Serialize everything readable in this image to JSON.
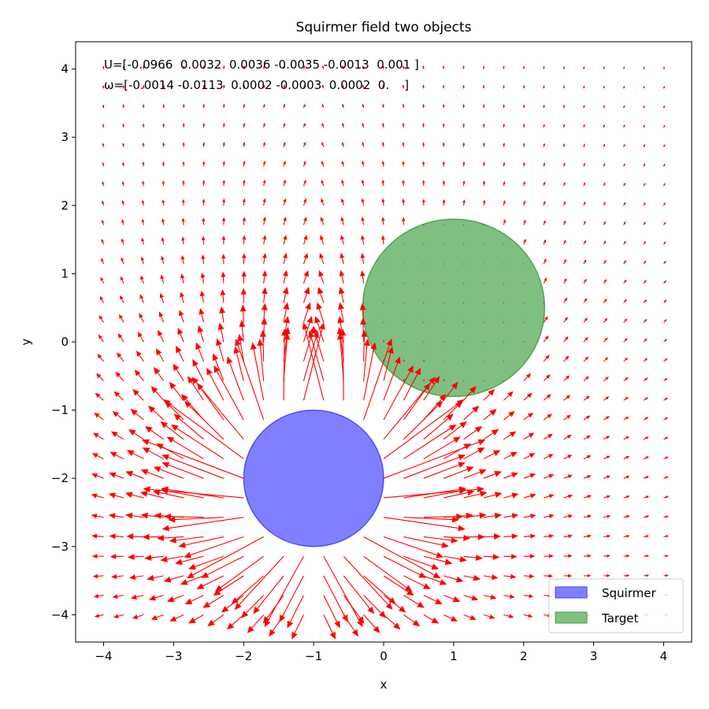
{
  "chart_data": {
    "type": "quiver",
    "title": "Squirmer field two objects",
    "xlabel": "x",
    "ylabel": "y",
    "xlim": [
      -4.4,
      4.4
    ],
    "ylim": [
      -4.4,
      4.4
    ],
    "xticks": [
      -4,
      -3,
      -2,
      -1,
      0,
      1,
      2,
      3,
      4
    ],
    "yticks": [
      -4,
      -3,
      -2,
      -1,
      0,
      1,
      2,
      3,
      4
    ],
    "xtick_labels": [
      "−4",
      "−3",
      "−2",
      "−1",
      "0",
      "1",
      "2",
      "3",
      "4"
    ],
    "ytick_labels": [
      "−4",
      "−3",
      "−2",
      "−1",
      "0",
      "1",
      "2",
      "3",
      "4"
    ],
    "grid": false,
    "annotations": [
      "U=[-0.0966  0.0032  0.0036 -0.0035 -0.0013  0.001 ]",
      "ω=[-0.0014 -0.0113  0.0002 -0.0003  0.0002  0.    ]"
    ],
    "objects": [
      {
        "name": "Squirmer",
        "center": [
          -1,
          -2
        ],
        "radius": 1.0,
        "color": "#0000ff",
        "alpha": 0.5
      },
      {
        "name": "Target",
        "center": [
          1,
          0.5
        ],
        "radius": 1.3,
        "color": "#008000",
        "alpha": 0.5
      }
    ],
    "quiver": {
      "color": "#ff0000",
      "grid_x": [
        -4,
        4
      ],
      "grid_y": [
        -4,
        4
      ],
      "grid_n": 29
    },
    "legend": {
      "placement": "lower-right",
      "entries": [
        "Squirmer",
        "Target"
      ]
    }
  }
}
